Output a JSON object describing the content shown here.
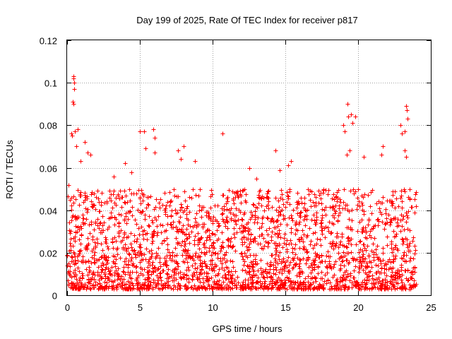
{
  "chart_data": {
    "type": "scatter",
    "title": "Day 199 of 2025, Rate Of TEC Index for receiver p817",
    "xlabel": "GPS time / hours",
    "ylabel": "ROTI / TECUs",
    "xlim": [
      0,
      25
    ],
    "ylim": [
      0,
      0.12
    ],
    "xticks": [
      0,
      5,
      10,
      15,
      20,
      25
    ],
    "yticks": [
      0,
      0.02,
      0.04,
      0.06,
      0.08,
      0.1,
      0.12
    ],
    "xtick_labels": [
      "0",
      "5",
      "10",
      "15",
      "20",
      "25"
    ],
    "ytick_labels": [
      "0",
      "0.02",
      "0.04",
      "0.06",
      "0.08",
      "0.1",
      "0.12"
    ],
    "grid": true,
    "marker": "+",
    "marker_color": "#ff0000",
    "series": [
      {
        "name": "ROTI",
        "x_range": [
          0,
          24
        ],
        "typical_range": [
          0.003,
          0.05
        ],
        "points": [
          {
            "x": 0.1,
            "y": 0.052
          },
          {
            "x": 0.2,
            "y": 0.045
          },
          {
            "x": 0.3,
            "y": 0.076
          },
          {
            "x": 0.35,
            "y": 0.075
          },
          {
            "x": 0.4,
            "y": 0.091
          },
          {
            "x": 0.42,
            "y": 0.103
          },
          {
            "x": 0.45,
            "y": 0.102
          },
          {
            "x": 0.47,
            "y": 0.1
          },
          {
            "x": 0.5,
            "y": 0.097
          },
          {
            "x": 0.45,
            "y": 0.09
          },
          {
            "x": 0.55,
            "y": 0.077
          },
          {
            "x": 0.65,
            "y": 0.07
          },
          {
            "x": 0.75,
            "y": 0.078
          },
          {
            "x": 0.9,
            "y": 0.063
          },
          {
            "x": 1.2,
            "y": 0.072
          },
          {
            "x": 1.4,
            "y": 0.067
          },
          {
            "x": 1.6,
            "y": 0.066
          },
          {
            "x": 3.2,
            "y": 0.056
          },
          {
            "x": 4.0,
            "y": 0.062
          },
          {
            "x": 4.4,
            "y": 0.058
          },
          {
            "x": 5.0,
            "y": 0.077
          },
          {
            "x": 5.3,
            "y": 0.077
          },
          {
            "x": 5.4,
            "y": 0.069
          },
          {
            "x": 5.9,
            "y": 0.078
          },
          {
            "x": 6.0,
            "y": 0.074
          },
          {
            "x": 6.0,
            "y": 0.067
          },
          {
            "x": 7.6,
            "y": 0.068
          },
          {
            "x": 7.8,
            "y": 0.064
          },
          {
            "x": 8.0,
            "y": 0.07
          },
          {
            "x": 8.8,
            "y": 0.063
          },
          {
            "x": 10.7,
            "y": 0.076
          },
          {
            "x": 12.5,
            "y": 0.06
          },
          {
            "x": 13.0,
            "y": 0.055
          },
          {
            "x": 14.3,
            "y": 0.068
          },
          {
            "x": 14.6,
            "y": 0.059
          },
          {
            "x": 15.2,
            "y": 0.061
          },
          {
            "x": 15.4,
            "y": 0.063
          },
          {
            "x": 19.0,
            "y": 0.08
          },
          {
            "x": 19.1,
            "y": 0.077
          },
          {
            "x": 19.25,
            "y": 0.09
          },
          {
            "x": 19.3,
            "y": 0.084
          },
          {
            "x": 19.5,
            "y": 0.085
          },
          {
            "x": 19.6,
            "y": 0.081
          },
          {
            "x": 19.8,
            "y": 0.084
          },
          {
            "x": 19.4,
            "y": 0.068
          },
          {
            "x": 19.2,
            "y": 0.066
          },
          {
            "x": 20.4,
            "y": 0.065
          },
          {
            "x": 21.7,
            "y": 0.07
          },
          {
            "x": 21.6,
            "y": 0.066
          },
          {
            "x": 22.9,
            "y": 0.08
          },
          {
            "x": 23.0,
            "y": 0.076
          },
          {
            "x": 23.2,
            "y": 0.077
          },
          {
            "x": 23.3,
            "y": 0.089
          },
          {
            "x": 23.35,
            "y": 0.087
          },
          {
            "x": 23.4,
            "y": 0.083
          },
          {
            "x": 23.2,
            "y": 0.068
          },
          {
            "x": 23.3,
            "y": 0.065
          }
        ]
      }
    ]
  }
}
